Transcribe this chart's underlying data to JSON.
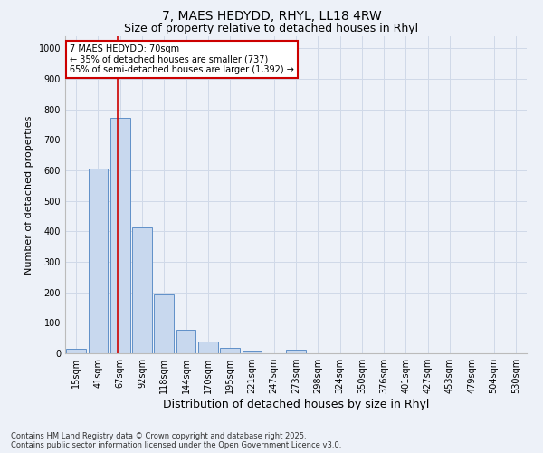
{
  "title1": "7, MAES HEDYDD, RHYL, LL18 4RW",
  "title2": "Size of property relative to detached houses in Rhyl",
  "xlabel": "Distribution of detached houses by size in Rhyl",
  "ylabel": "Number of detached properties",
  "categories": [
    "15sqm",
    "41sqm",
    "67sqm",
    "92sqm",
    "118sqm",
    "144sqm",
    "170sqm",
    "195sqm",
    "221sqm",
    "247sqm",
    "273sqm",
    "298sqm",
    "324sqm",
    "350sqm",
    "376sqm",
    "401sqm",
    "427sqm",
    "453sqm",
    "479sqm",
    "504sqm",
    "530sqm"
  ],
  "values": [
    15,
    607,
    773,
    413,
    193,
    77,
    40,
    17,
    10,
    0,
    12,
    0,
    0,
    0,
    0,
    0,
    0,
    0,
    0,
    0,
    0
  ],
  "bar_color": "#c8d8ee",
  "bar_edge_color": "#6090c8",
  "grid_color": "#d0d9e8",
  "background_color": "#edf1f8",
  "red_line_x": 1.87,
  "annotation_line1": "7 MAES HEDYDD: 70sqm",
  "annotation_line2": "← 35% of detached houses are smaller (737)",
  "annotation_line3": "65% of semi-detached houses are larger (1,392) →",
  "annotation_box_facecolor": "#ffffff",
  "annotation_box_edgecolor": "#cc0000",
  "ylim": [
    0,
    1040
  ],
  "yticks": [
    0,
    100,
    200,
    300,
    400,
    500,
    600,
    700,
    800,
    900,
    1000
  ],
  "footer": "Contains HM Land Registry data © Crown copyright and database right 2025.\nContains public sector information licensed under the Open Government Licence v3.0.",
  "title_fontsize": 10,
  "subtitle_fontsize": 9,
  "tick_fontsize": 7,
  "ylabel_fontsize": 8,
  "xlabel_fontsize": 9,
  "annotation_fontsize": 7,
  "footer_fontsize": 6
}
